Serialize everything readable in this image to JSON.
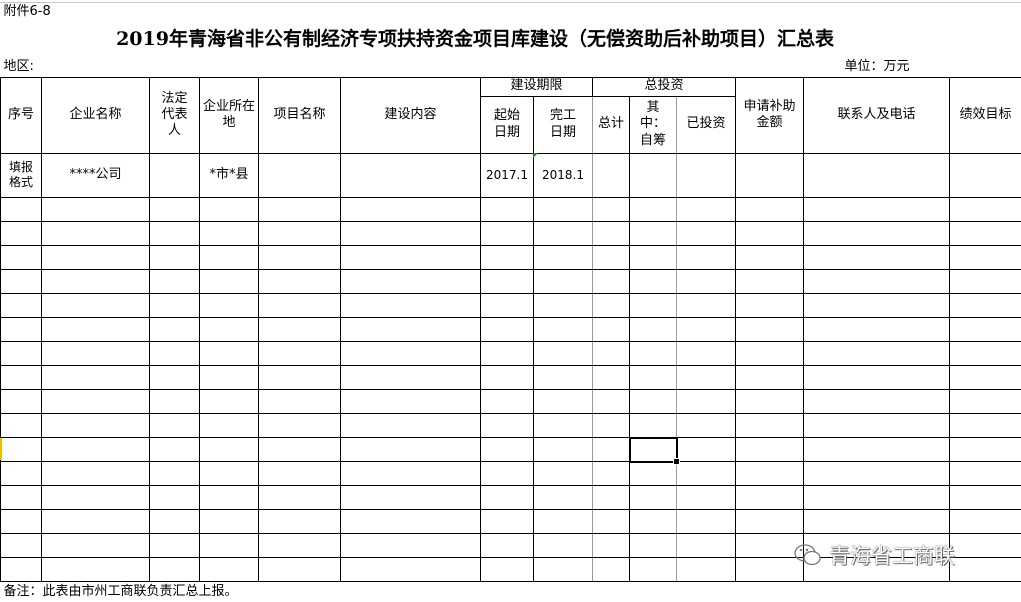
{
  "sheet": {
    "attachment_label": "附件6-8",
    "title": "2019年青海省非公有制经济专项扶持资金项目库建设（无偿资助后补助项目）汇总表",
    "region_label": "地区:",
    "unit_label": "单位：万元",
    "headers": {
      "seq": "序号",
      "company_name": "企业名称",
      "legal_rep": "法定代表人",
      "location": "企业所在地",
      "project_name": "项目名称",
      "content": "建设内容",
      "period": "建设期限",
      "start_date": "起始日期",
      "end_date": "完工日期",
      "total_investment": "总投资",
      "total": "总计",
      "self_raised": "其中：自筹",
      "invested": "已投资",
      "subsidy_amount": "申请补助金额",
      "contact": "联系人及电话",
      "performance": "绩效目标"
    },
    "example_row": {
      "seq": "填报格式",
      "company_name": "****公司",
      "legal_rep": "",
      "location": "*市*县",
      "project_name": "",
      "content": "",
      "start_date": "2017.1",
      "end_date": "2018.1"
    },
    "empty_row_count": 16,
    "footer_note": "备注：此表由市州工商联负责汇总上报。",
    "watermark": "青海省工商联"
  }
}
